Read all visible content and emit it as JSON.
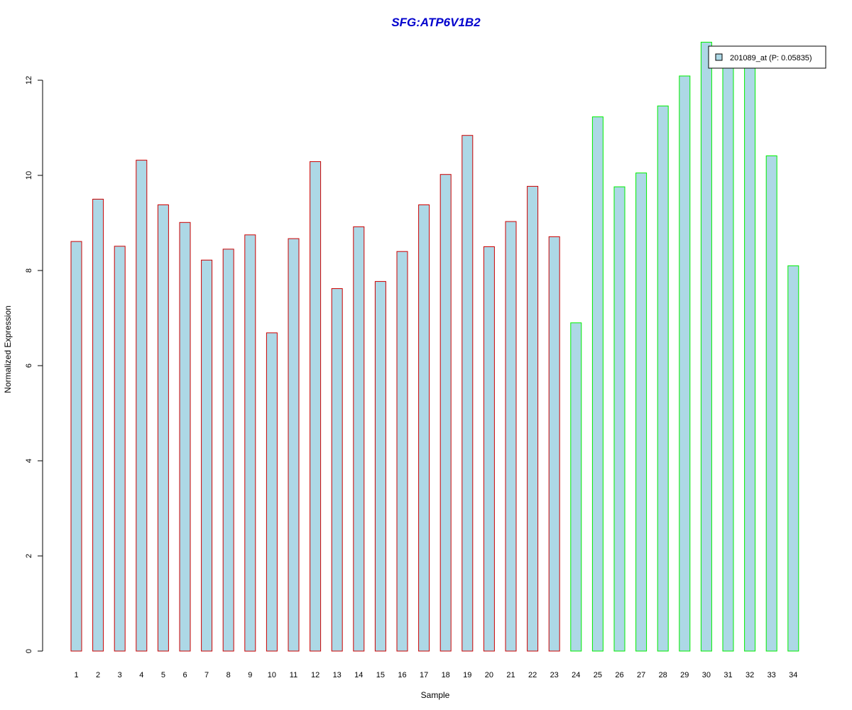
{
  "chart_data": {
    "type": "bar",
    "title": "SFG:ATP6V1B2",
    "xlabel": "Sample",
    "ylabel": "Normalized Expression",
    "categories": [
      "1",
      "2",
      "3",
      "4",
      "5",
      "6",
      "7",
      "8",
      "9",
      "10",
      "11",
      "12",
      "13",
      "14",
      "15",
      "16",
      "17",
      "18",
      "19",
      "20",
      "21",
      "22",
      "23",
      "24",
      "25",
      "26",
      "27",
      "28",
      "29",
      "30",
      "31",
      "32",
      "33",
      "34"
    ],
    "values": [
      8.61,
      9.5,
      8.51,
      10.32,
      9.38,
      9.01,
      8.22,
      8.45,
      8.75,
      6.69,
      8.67,
      10.29,
      7.62,
      8.92,
      7.77,
      8.4,
      9.38,
      10.02,
      10.84,
      8.5,
      9.03,
      9.77,
      8.71,
      6.9,
      11.23,
      9.76,
      10.05,
      11.46,
      12.09,
      12.8,
      12.47,
      12.62,
      10.41,
      8.1
    ],
    "groups": [
      1,
      1,
      1,
      1,
      1,
      1,
      1,
      1,
      1,
      1,
      1,
      1,
      1,
      1,
      1,
      1,
      1,
      1,
      1,
      1,
      1,
      1,
      1,
      2,
      2,
      2,
      2,
      2,
      2,
      2,
      2,
      2,
      2,
      2
    ],
    "ylim": [
      0,
      12
    ],
    "yticks": [
      0,
      2,
      4,
      6,
      8,
      10,
      12
    ],
    "grid": false,
    "legend": {
      "placement": "top-right",
      "entries": [
        "201089_at (P: 0.05835)"
      ]
    },
    "colors": {
      "title": "#0000CD",
      "bar_fill": "#ADD8E6",
      "group1_border": "#CC0000",
      "group2_border": "#00EE00",
      "axis": "#000000"
    }
  }
}
